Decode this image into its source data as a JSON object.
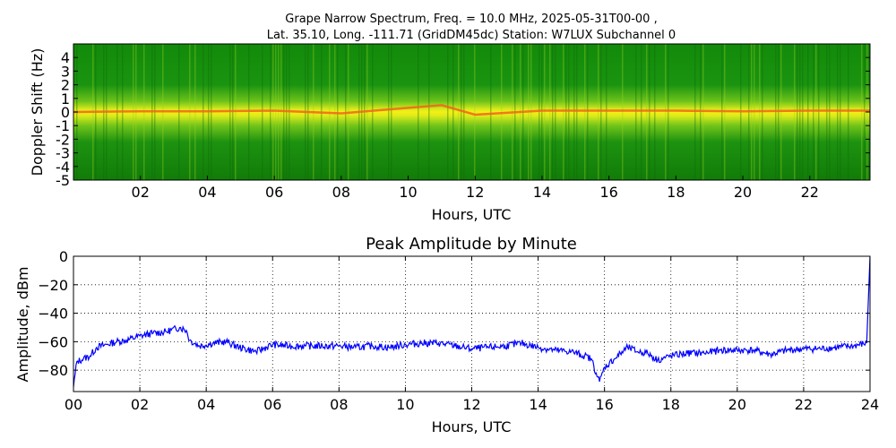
{
  "figure": {
    "title_line1": "Grape Narrow Spectrum, Freq. = 10.0 MHz, 2025-05-31T00-00 ,",
    "title_line2": "Lat.  35.10, Long. -111.71 (GridDM45dc) Station: W7LUX Subchannel 0"
  },
  "chart_data": [
    {
      "type": "heatmap",
      "title": "",
      "xlabel": "Hours, UTC",
      "ylabel": "Doppler Shift (Hz)",
      "xlim": [
        0,
        23.8
      ],
      "ylim": [
        -5,
        5
      ],
      "x_ticks": [
        2,
        4,
        6,
        8,
        10,
        12,
        14,
        16,
        18,
        20,
        22
      ],
      "x_tick_labels": [
        "02",
        "04",
        "06",
        "08",
        "10",
        "12",
        "14",
        "16",
        "18",
        "20",
        "22"
      ],
      "y_ticks": [
        -5,
        -4,
        -3,
        -2,
        -1,
        0,
        1,
        2,
        3,
        4
      ],
      "y_tick_labels": [
        "-5",
        "-4",
        "-3",
        "-2",
        "-1",
        "0",
        "1",
        "2",
        "3",
        "4"
      ],
      "colors": {
        "low": "#0a7a06",
        "mid": "#c9e21a",
        "high": "#f7f10f",
        "peak": "#f05a1a"
      },
      "carrier_doppler_hz": [
        [
          0,
          0
        ],
        [
          2,
          0.05
        ],
        [
          4,
          0.05
        ],
        [
          6,
          0.1
        ],
        [
          8,
          -0.1
        ],
        [
          10,
          0.3
        ],
        [
          11,
          0.5
        ],
        [
          12,
          -0.2
        ],
        [
          14,
          0.1
        ],
        [
          16,
          0.1
        ],
        [
          18,
          0.1
        ],
        [
          20,
          0.05
        ],
        [
          22,
          0.1
        ],
        [
          23.8,
          0.1
        ]
      ],
      "grid": false
    },
    {
      "type": "line",
      "title": "Peak Amplitude by Minute",
      "xlabel": "Hours, UTC",
      "ylabel": "Amplitude, dBm",
      "xlim": [
        0,
        24
      ],
      "ylim": [
        -95,
        0
      ],
      "x_ticks": [
        0,
        2,
        4,
        6,
        8,
        10,
        12,
        14,
        16,
        18,
        20,
        22,
        24
      ],
      "x_tick_labels": [
        "00",
        "02",
        "04",
        "06",
        "08",
        "10",
        "12",
        "14",
        "16",
        "18",
        "20",
        "22",
        "24"
      ],
      "y_ticks": [
        0,
        -20,
        -40,
        -60,
        -80
      ],
      "y_tick_labels": [
        "0",
        "−20",
        "−40",
        "−60",
        "−80"
      ],
      "grid": true,
      "line_color": "#0000ff",
      "series": [
        {
          "x": [
            0,
            0.1,
            0.3,
            0.5,
            0.7,
            1.0,
            1.3,
            1.6,
            2.0,
            2.4,
            2.8,
            3.2,
            3.4,
            3.5,
            3.8,
            4.2,
            4.6,
            5.0,
            5.5,
            6.0,
            6.5,
            7.0,
            7.5,
            8.0,
            8.5,
            9.0,
            9.5,
            10.0,
            10.5,
            11.0,
            11.5,
            12.0,
            12.5,
            13.0,
            13.5,
            14.0,
            14.5,
            15.0,
            15.4,
            15.6,
            15.75,
            15.85,
            16.0,
            16.3,
            16.7,
            17.0,
            17.3,
            17.6,
            18.0,
            18.5,
            19.0,
            19.5,
            20.0,
            20.5,
            21.0,
            21.5,
            22.0,
            22.5,
            23.0,
            23.5,
            23.9,
            24.0
          ],
          "y": [
            -92,
            -74,
            -72,
            -70,
            -64,
            -62,
            -60,
            -59,
            -56,
            -54,
            -53,
            -50,
            -52,
            -59,
            -63,
            -61,
            -60,
            -64,
            -67,
            -62,
            -63,
            -63,
            -63,
            -63,
            -64,
            -63,
            -64,
            -62,
            -61,
            -61,
            -63,
            -65,
            -64,
            -63,
            -61,
            -64,
            -66,
            -67,
            -70,
            -72,
            -82,
            -88,
            -78,
            -72,
            -64,
            -67,
            -68,
            -73,
            -70,
            -68,
            -68,
            -66,
            -66,
            -66,
            -69,
            -66,
            -65,
            -65,
            -64,
            -63,
            -61,
            0
          ]
        }
      ]
    }
  ]
}
